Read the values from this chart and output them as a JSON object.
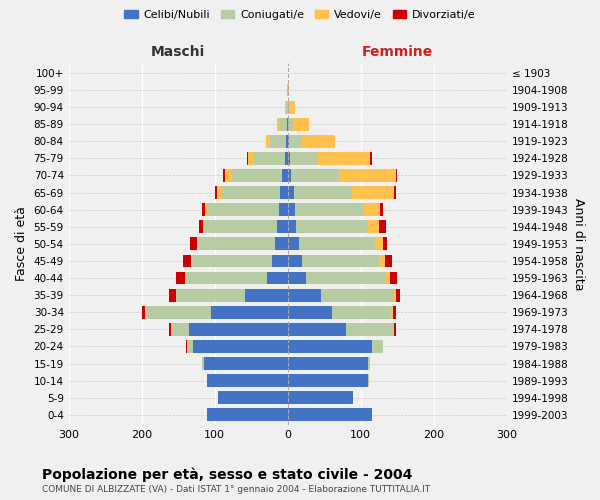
{
  "age_groups": [
    "100+",
    "95-99",
    "90-94",
    "85-89",
    "80-84",
    "75-79",
    "70-74",
    "65-69",
    "60-64",
    "55-59",
    "50-54",
    "45-49",
    "40-44",
    "35-39",
    "30-34",
    "25-29",
    "20-24",
    "15-19",
    "10-14",
    "5-9",
    "0-4"
  ],
  "birth_years": [
    "≤ 1903",
    "1904-1908",
    "1909-1913",
    "1914-1918",
    "1919-1923",
    "1924-1928",
    "1929-1933",
    "1934-1938",
    "1939-1943",
    "1944-1948",
    "1949-1953",
    "1954-1958",
    "1959-1963",
    "1964-1968",
    "1969-1973",
    "1974-1978",
    "1979-1983",
    "1984-1988",
    "1989-1993",
    "1994-1998",
    "1999-2003"
  ],
  "maschi": {
    "celibi": [
      0,
      0,
      0,
      1,
      2,
      4,
      8,
      10,
      12,
      14,
      18,
      22,
      28,
      58,
      105,
      135,
      130,
      115,
      110,
      95,
      110
    ],
    "coniugati": [
      0,
      1,
      3,
      10,
      22,
      42,
      68,
      82,
      98,
      100,
      105,
      110,
      112,
      95,
      90,
      25,
      8,
      2,
      1,
      0,
      0
    ],
    "vedovi": [
      0,
      0,
      1,
      3,
      6,
      8,
      10,
      5,
      3,
      2,
      1,
      1,
      1,
      0,
      0,
      0,
      0,
      0,
      0,
      0,
      0
    ],
    "divorziati": [
      0,
      0,
      0,
      0,
      0,
      2,
      2,
      3,
      5,
      6,
      10,
      10,
      12,
      10,
      4,
      2,
      1,
      0,
      0,
      0,
      0
    ]
  },
  "femmine": {
    "nubili": [
      0,
      0,
      0,
      1,
      2,
      3,
      5,
      8,
      10,
      12,
      15,
      20,
      25,
      45,
      60,
      80,
      115,
      110,
      110,
      90,
      115
    ],
    "coniugate": [
      0,
      0,
      2,
      8,
      18,
      38,
      65,
      80,
      95,
      98,
      105,
      105,
      110,
      100,
      82,
      65,
      15,
      3,
      1,
      0,
      0
    ],
    "vedove": [
      0,
      2,
      8,
      20,
      45,
      72,
      78,
      58,
      22,
      15,
      10,
      8,
      5,
      3,
      2,
      1,
      0,
      0,
      0,
      0,
      0
    ],
    "divorziate": [
      0,
      0,
      0,
      0,
      0,
      2,
      2,
      3,
      4,
      10,
      6,
      10,
      10,
      6,
      5,
      2,
      1,
      0,
      0,
      0,
      0
    ]
  },
  "colors": {
    "celibi": "#4472c4",
    "coniugati": "#b8cca4",
    "vedovi": "#ffc04c",
    "divorziati": "#cc0000"
  },
  "xlim": 300,
  "title": "Popolazione per età, sesso e stato civile - 2004",
  "subtitle": "COMUNE DI ALBIZZATE (VA) - Dati ISTAT 1° gennaio 2004 - Elaborazione TUTTITALIA.IT",
  "ylabel": "Fasce di età",
  "ylabel2": "Anni di nascita",
  "xlabel_maschi": "Maschi",
  "xlabel_femmine": "Femmine",
  "legend_labels": [
    "Celibi/Nubili",
    "Coniugati/e",
    "Vedovi/e",
    "Divorziati/e"
  ],
  "background_color": "#f0f0f0"
}
